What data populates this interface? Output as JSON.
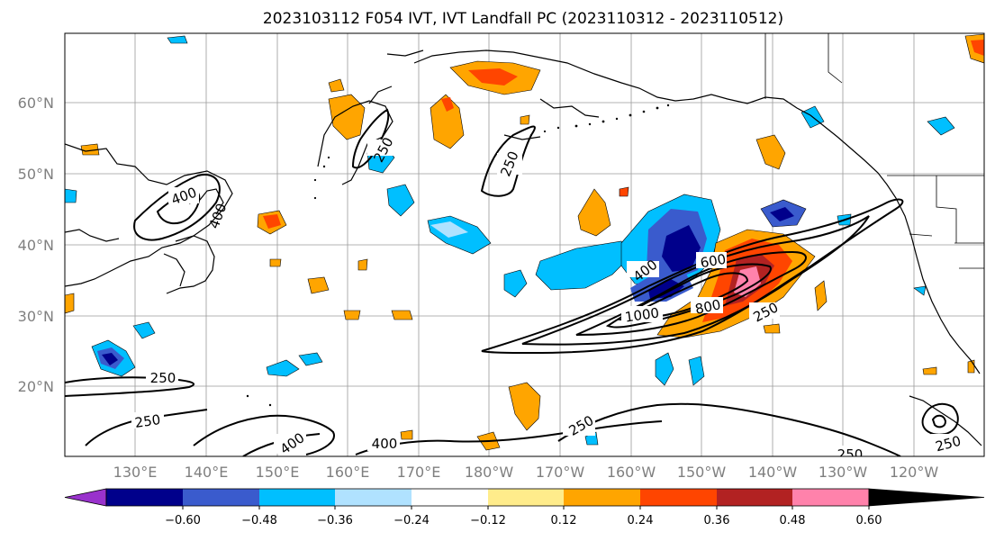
{
  "title": "2023103112 F054 IVT, IVT Landfall PC (2023110312 - 2023110512)",
  "map": {
    "lat_labels": [
      "60°N",
      "50°N",
      "40°N",
      "30°N",
      "20°N"
    ],
    "lon_labels": [
      "130°E",
      "140°E",
      "150°E",
      "160°E",
      "170°E",
      "180°W",
      "170°W",
      "160°W",
      "150°W",
      "140°W",
      "130°W",
      "120°W"
    ]
  },
  "colorbar": {
    "colors": [
      "#9932cc",
      "#00008b",
      "#3a5bcd",
      "#00bfff",
      "#b0e2ff",
      "#ffffff",
      "#ffec8b",
      "#ffa500",
      "#ff4500",
      "#b22222",
      "#ff82ab"
    ],
    "tick_labels": [
      "−0.60",
      "−0.48",
      "−0.36",
      "−0.24",
      "−0.12",
      "0.12",
      "0.24",
      "0.36",
      "0.48",
      "0.60"
    ]
  },
  "contour_labels": [
    "400",
    "400",
    "250",
    "250",
    "600",
    "400",
    "1000",
    "800",
    "250",
    "250",
    "250",
    "250",
    "400",
    "400",
    "250",
    "250"
  ]
}
